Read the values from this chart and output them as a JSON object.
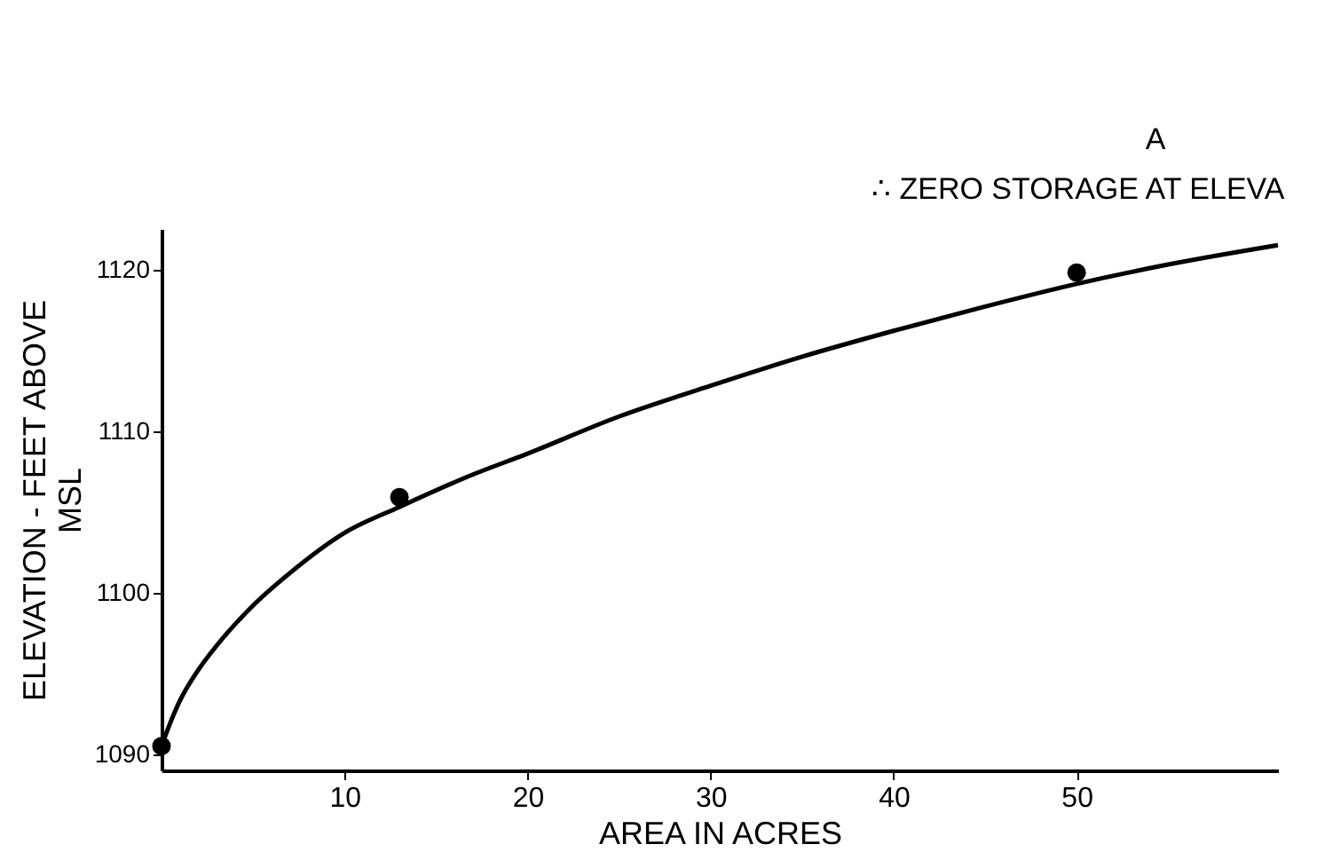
{
  "chart_data": {
    "type": "scatter",
    "xlabel": "AREA IN ACRES",
    "ylabel": "ELEVATION - FEET ABOVE MSL",
    "annotations": [
      "A",
      "∴ ZERO STORAGE AT ELEVA"
    ],
    "xlim": [
      0,
      61
    ],
    "ylim": [
      1089,
      1122.5
    ],
    "xticks": [
      10,
      20,
      30,
      40,
      50
    ],
    "yticks": [
      1090,
      1100,
      1110,
      1120
    ],
    "grid": false,
    "series": [
      {
        "type": "line",
        "color": "#000000",
        "marker": "none",
        "x": [
          0,
          0.5,
          1,
          2,
          3,
          5,
          7,
          10,
          13,
          17,
          20,
          25,
          30,
          35,
          40,
          45,
          50,
          55,
          61
        ],
        "values": [
          1090.5,
          1092,
          1093.3,
          1095.2,
          1096.7,
          1099.2,
          1101.2,
          1103.7,
          1105.3,
          1107.3,
          1108.6,
          1110.9,
          1112.8,
          1114.6,
          1116.2,
          1117.7,
          1119.1,
          1120.3,
          1121.5
        ]
      },
      {
        "color": "#000000",
        "marker": "circle",
        "x": [
          0,
          13,
          50
        ],
        "values": [
          1090.5,
          1105.9,
          1119.8
        ]
      }
    ]
  }
}
